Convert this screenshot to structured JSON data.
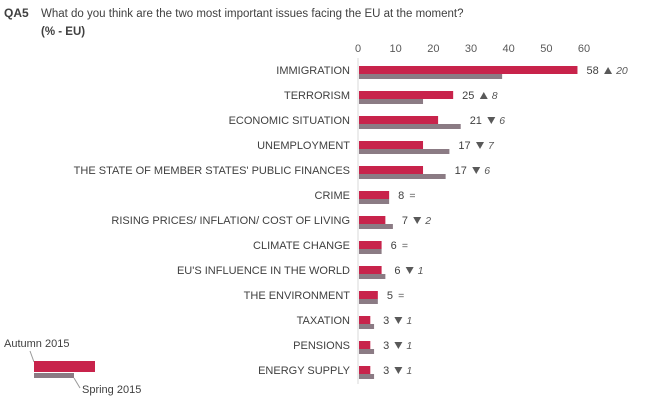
{
  "header": {
    "code": "QA5",
    "question": "What do you think are the two most important issues facing the EU at the moment?",
    "unit": "(% - EU)"
  },
  "chart_data": {
    "type": "bar",
    "orientation": "horizontal",
    "xlim": [
      0,
      60
    ],
    "xticks": [
      "0",
      "10",
      "20",
      "30",
      "40",
      "50",
      "60"
    ],
    "categories": [
      "IMMIGRATION",
      "TERRORISM",
      "ECONOMIC SITUATION",
      "UNEMPLOYMENT",
      "THE STATE OF MEMBER STATES' PUBLIC FINANCES",
      "CRIME",
      "RISING PRICES/ INFLATION/ COST OF LIVING",
      "CLIMATE CHANGE",
      "EU'S INFLUENCE IN THE WORLD",
      "THE ENVIRONMENT",
      "TAXATION",
      "PENSIONS",
      "ENERGY SUPPLY"
    ],
    "series": [
      {
        "name": "Autumn 2015",
        "color": "#c8234b",
        "values": [
          58,
          25,
          21,
          17,
          17,
          8,
          7,
          6,
          6,
          5,
          3,
          3,
          3
        ]
      },
      {
        "name": "Spring 2015",
        "color": "#8b7b84",
        "values": [
          38,
          17,
          27,
          24,
          23,
          8,
          9,
          6,
          7,
          5,
          4,
          4,
          4
        ]
      }
    ],
    "value_labels": [
      "58",
      "25",
      "21",
      "17",
      "17",
      "8",
      "7",
      "6",
      "6",
      "5",
      "3",
      "3",
      "3"
    ],
    "changes": [
      {
        "dir": "up",
        "text": "20"
      },
      {
        "dir": "up",
        "text": "8"
      },
      {
        "dir": "down",
        "text": "6"
      },
      {
        "dir": "down",
        "text": "7"
      },
      {
        "dir": "down",
        "text": "6"
      },
      {
        "dir": "eq",
        "text": "="
      },
      {
        "dir": "down",
        "text": "2"
      },
      {
        "dir": "eq",
        "text": "="
      },
      {
        "dir": "down",
        "text": "1"
      },
      {
        "dir": "eq",
        "text": "="
      },
      {
        "dir": "down",
        "text": "1"
      },
      {
        "dir": "down",
        "text": "1"
      },
      {
        "dir": "down",
        "text": "1"
      }
    ],
    "legend": {
      "position": "bottom-left",
      "items": [
        "Autumn 2015",
        "Spring 2015"
      ]
    },
    "grid": false
  }
}
